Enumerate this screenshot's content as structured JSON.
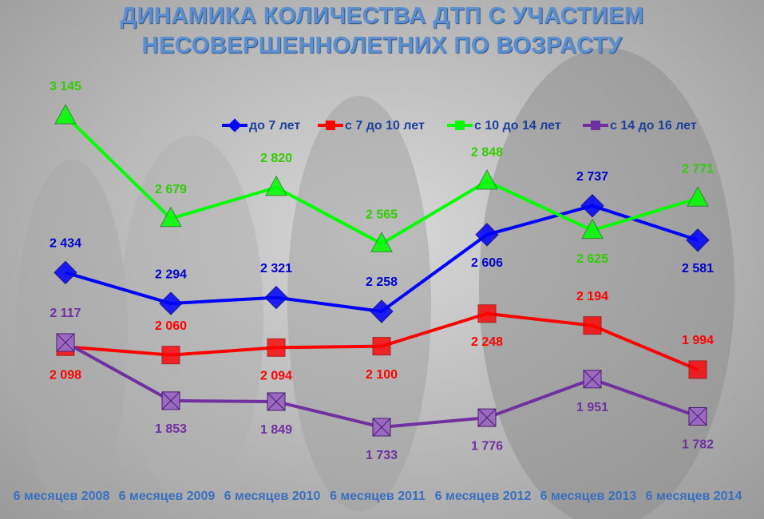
{
  "chart_data": {
    "type": "line",
    "title": "ДИНАМИКА КОЛИЧЕСТВА ДТП С УЧАСТИЕМ НЕСОВЕРШЕННОЛЕТНИХ ПО ВОЗРАСТУ",
    "categories": [
      "6 месяцев 2008",
      "6 месяцев 2009",
      "6 месяцев 2010",
      "6 месяцев 2011",
      "6 месяцев 2012",
      "6 месяцев 2013",
      "6 месяцев 2014"
    ],
    "series": [
      {
        "name": "до 7 лет",
        "color": "#0000ff",
        "values": [
          2434,
          2294,
          2321,
          2258,
          2606,
          2737,
          2581
        ],
        "value_labels": [
          "2 434",
          "2 294",
          "2 321",
          "2 258",
          "2 606",
          "2 737",
          "2 581"
        ]
      },
      {
        "name": "с 7 до 10 лет",
        "color": "#ff0000",
        "values": [
          2098,
          2060,
          2094,
          2100,
          2248,
          2194,
          1994
        ],
        "value_labels": [
          "2 098",
          "2 060",
          "2 094",
          "2 100",
          "2 248",
          "2 194",
          "1 994"
        ]
      },
      {
        "name": "с 10 до 14 лет",
        "color": "#00ff00",
        "values": [
          3145,
          2679,
          2820,
          2565,
          2848,
          2625,
          2771
        ],
        "value_labels": [
          "3 145",
          "2 679",
          "2 820",
          "2 565",
          "2 848",
          "2 625",
          "2 771"
        ]
      },
      {
        "name": "с 14 до 16 лет",
        "color": "#7030a0",
        "values": [
          2117,
          1853,
          1849,
          1733,
          1776,
          1951,
          1782
        ],
        "value_labels": [
          "2 117",
          "1 853",
          "1 849",
          "1 733",
          "1 776",
          "1 951",
          "1 782"
        ]
      }
    ],
    "legend": "top"
  }
}
